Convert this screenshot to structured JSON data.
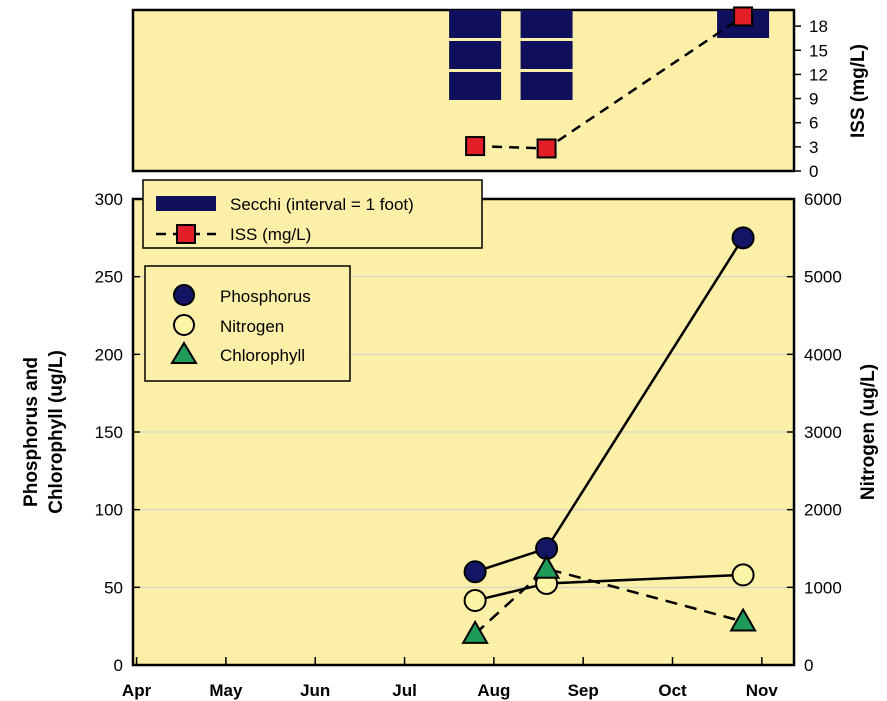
{
  "chart_data": [
    {
      "type": "bar",
      "panel": "top",
      "ylabel": "ISS (mg/L)",
      "ylim": [
        0,
        20
      ],
      "yticks": [
        0,
        3,
        6,
        9,
        12,
        15,
        18
      ],
      "xlim": [
        0,
        7.4
      ],
      "secchi": {
        "name": "Secchi (interval = 1 foot)",
        "color": "#0f0f5c",
        "bars": [
          {
            "x": 3.83,
            "depth_ft": 3
          },
          {
            "x": 4.63,
            "depth_ft": 3
          },
          {
            "x": 6.83,
            "depth_ft": 1
          }
        ]
      },
      "series": [
        {
          "name": "ISS (mg/L)",
          "color": "#e21f26",
          "style": "dashed",
          "x": [
            3.83,
            4.63,
            6.83
          ],
          "values": [
            3.1,
            2.8,
            19.2
          ]
        }
      ]
    },
    {
      "type": "line",
      "panel": "bottom",
      "x_tick_labels": [
        "Apr",
        "May",
        "Jun",
        "Jul",
        "Aug",
        "Sep",
        "Oct",
        "Nov"
      ],
      "xlim": [
        0,
        7.4
      ],
      "ylabel_left": [
        "Phosphorus and",
        "Chlorophyll (ug/L)"
      ],
      "ylabel_right": "Nitrogen (ug/L)",
      "ylim_left": [
        0,
        300
      ],
      "yticks_left": [
        0,
        50,
        100,
        150,
        200,
        250,
        300
      ],
      "ylim_right": [
        0,
        6000
      ],
      "yticks_right": [
        0,
        1000,
        2000,
        3000,
        4000,
        5000,
        6000
      ],
      "gridlines": [
        50,
        100,
        150,
        200,
        250
      ],
      "series": [
        {
          "name": "Phosphorus",
          "marker": "circle",
          "fill": "#151565",
          "style": "solid",
          "axis": "left",
          "x": [
            3.83,
            4.63,
            6.83
          ],
          "values": [
            60,
            75,
            275
          ]
        },
        {
          "name": "Nitrogen",
          "marker": "circle",
          "fill": "#fdf5a6",
          "style": "solid",
          "axis": "right",
          "x": [
            3.83,
            4.63,
            6.83
          ],
          "values": [
            830,
            1050,
            1160
          ]
        },
        {
          "name": "Chlorophyll",
          "marker": "triangle",
          "fill": "#1e9b58",
          "style": "dashed",
          "axis": "left",
          "x": [
            3.83,
            4.63,
            6.83
          ],
          "values": [
            20,
            62,
            28
          ]
        }
      ]
    }
  ],
  "colors": {
    "background": "#fcf0a8",
    "grid": "#cfcfcf",
    "axis": "#000000"
  }
}
